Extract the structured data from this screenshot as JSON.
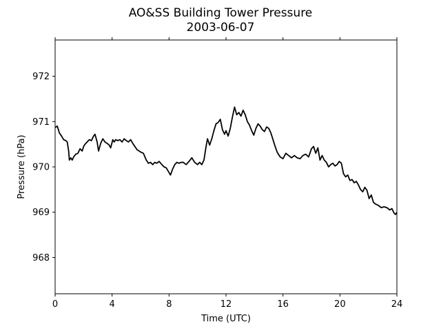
{
  "chart_data": {
    "type": "line",
    "title": "AO&SS Building Tower Pressure",
    "subtitle": "2003-06-07",
    "xlabel": "Time (UTC)",
    "ylabel": "Pressure (hPa)",
    "xlim": [
      0,
      24
    ],
    "ylim": [
      967.2,
      972.8
    ],
    "xticks": [
      0,
      4,
      8,
      12,
      16,
      20,
      24
    ],
    "yticks": [
      968,
      969,
      970,
      971,
      972
    ],
    "grid": false,
    "line_color": "#000000",
    "series": [
      {
        "x": [
          0,
          0.15,
          0.3,
          0.45,
          0.6,
          0.75,
          0.85,
          0.95,
          1.0,
          1.1,
          1.2,
          1.3,
          1.45,
          1.6,
          1.75,
          1.9,
          2.0,
          2.1,
          2.25,
          2.4,
          2.55,
          2.7,
          2.8,
          2.95,
          3.05,
          3.2,
          3.35,
          3.5,
          3.65,
          3.8,
          3.9,
          4.05,
          4.15,
          4.25,
          4.4,
          4.55,
          4.7,
          4.85,
          5.0,
          5.15,
          5.3,
          5.45,
          5.6,
          5.75,
          5.9,
          6.05,
          6.2,
          6.4,
          6.55,
          6.7,
          6.85,
          7.0,
          7.15,
          7.3,
          7.5,
          7.65,
          7.8,
          7.95,
          8.1,
          8.25,
          8.4,
          8.55,
          8.7,
          8.85,
          9.0,
          9.2,
          9.4,
          9.6,
          9.8,
          10.0,
          10.15,
          10.3,
          10.45,
          10.6,
          10.7,
          10.85,
          11.0,
          11.15,
          11.3,
          11.45,
          11.6,
          11.75,
          11.9,
          12.0,
          12.15,
          12.3,
          12.45,
          12.6,
          12.75,
          12.9,
          13.05,
          13.2,
          13.35,
          13.5,
          13.65,
          13.8,
          13.95,
          14.1,
          14.25,
          14.4,
          14.55,
          14.7,
          14.85,
          15.0,
          15.15,
          15.3,
          15.45,
          15.6,
          15.8,
          16.0,
          16.2,
          16.4,
          16.6,
          16.8,
          17.0,
          17.2,
          17.4,
          17.6,
          17.8,
          18.0,
          18.15,
          18.3,
          18.45,
          18.6,
          18.75,
          18.9,
          19.05,
          19.2,
          19.35,
          19.5,
          19.65,
          19.8,
          19.95,
          20.1,
          20.25,
          20.4,
          20.55,
          20.7,
          20.85,
          21.0,
          21.15,
          21.3,
          21.45,
          21.6,
          21.75,
          21.9,
          22.05,
          22.2,
          22.35,
          22.5,
          22.7,
          22.9,
          23.1,
          23.3,
          23.5,
          23.65,
          23.8,
          23.9,
          24.0
        ],
        "values": [
          970.87,
          970.9,
          970.75,
          970.68,
          970.6,
          970.58,
          970.55,
          970.35,
          970.15,
          970.2,
          970.15,
          970.22,
          970.28,
          970.3,
          970.4,
          970.35,
          970.45,
          970.5,
          970.55,
          970.6,
          970.58,
          970.68,
          970.72,
          970.55,
          970.35,
          970.52,
          970.62,
          970.55,
          970.52,
          970.48,
          970.42,
          970.6,
          970.55,
          970.6,
          970.58,
          970.6,
          970.55,
          970.62,
          970.58,
          970.55,
          970.6,
          970.52,
          970.45,
          970.38,
          970.35,
          970.32,
          970.3,
          970.15,
          970.08,
          970.1,
          970.05,
          970.1,
          970.08,
          970.12,
          970.05,
          970.0,
          969.98,
          969.9,
          969.82,
          969.95,
          970.05,
          970.1,
          970.08,
          970.1,
          970.1,
          970.05,
          970.12,
          970.2,
          970.1,
          970.05,
          970.1,
          970.05,
          970.15,
          970.45,
          970.62,
          970.48,
          970.62,
          970.8,
          970.95,
          970.98,
          971.05,
          970.82,
          970.72,
          970.8,
          970.68,
          970.85,
          971.1,
          971.32,
          971.15,
          971.2,
          971.12,
          971.25,
          971.15,
          971.0,
          970.92,
          970.8,
          970.7,
          970.85,
          970.95,
          970.9,
          970.82,
          970.78,
          970.88,
          970.85,
          970.75,
          970.6,
          970.45,
          970.32,
          970.22,
          970.18,
          970.3,
          970.25,
          970.2,
          970.25,
          970.2,
          970.18,
          970.25,
          970.28,
          970.22,
          970.4,
          970.45,
          970.3,
          970.42,
          970.15,
          970.25,
          970.15,
          970.1,
          970.0,
          970.05,
          970.08,
          970.02,
          970.05,
          970.12,
          970.08,
          969.85,
          969.78,
          969.82,
          969.7,
          969.72,
          969.65,
          969.68,
          969.6,
          969.5,
          969.45,
          969.55,
          969.48,
          969.3,
          969.38,
          969.22,
          969.18,
          969.15,
          969.1,
          969.12,
          969.1,
          969.05,
          969.08,
          968.98,
          968.95,
          969.0
        ]
      }
    ]
  }
}
